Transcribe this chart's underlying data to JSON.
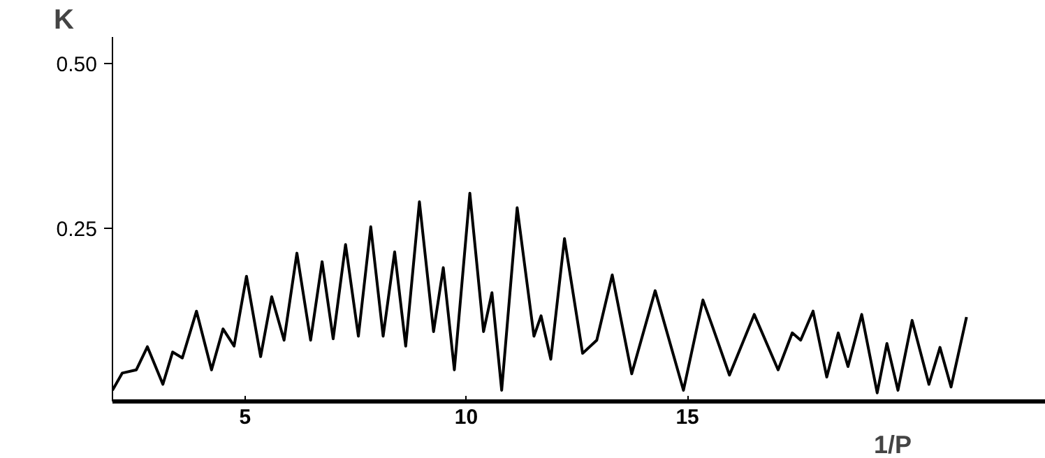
{
  "chart_data": {
    "type": "line",
    "xlabel": "1/P",
    "ylabel": "K",
    "x": [
      2.0,
      2.22,
      2.54,
      2.79,
      3.14,
      3.36,
      3.58,
      3.9,
      4.24,
      4.5,
      4.75,
      5.03,
      5.35,
      5.6,
      5.88,
      6.17,
      6.48,
      6.74,
      6.99,
      7.27,
      7.56,
      7.84,
      8.12,
      8.38,
      8.63,
      8.94,
      9.26,
      9.48,
      9.73,
      10.08,
      10.39,
      10.58,
      10.8,
      11.15,
      11.53,
      11.69,
      11.91,
      12.22,
      12.63,
      12.95,
      13.3,
      13.74,
      14.27,
      14.91,
      15.35,
      15.57,
      15.95,
      16.51,
      17.05,
      17.37,
      17.56,
      17.84,
      18.15,
      18.41,
      18.63,
      18.94,
      19.29,
      19.51,
      19.76,
      20.08,
      20.46,
      20.71,
      20.96,
      21.31
    ],
    "series": [
      {
        "color": "#000000",
        "values": [
          0.004,
          0.03,
          0.035,
          0.07,
          0.013,
          0.062,
          0.053,
          0.124,
          0.035,
          0.097,
          0.071,
          0.177,
          0.055,
          0.146,
          0.08,
          0.212,
          0.08,
          0.199,
          0.082,
          0.225,
          0.086,
          0.252,
          0.086,
          0.214,
          0.071,
          0.29,
          0.093,
          0.19,
          0.035,
          0.303,
          0.093,
          0.152,
          0.004,
          0.281,
          0.086,
          0.117,
          0.051,
          0.234,
          0.06,
          0.08,
          0.179,
          0.029,
          0.155,
          0.004,
          0.141,
          0.1,
          0.027,
          0.119,
          0.035,
          0.091,
          0.08,
          0.124,
          0.024,
          0.091,
          0.04,
          0.119,
          0.0,
          0.075,
          0.004,
          0.11,
          0.013,
          0.069,
          0.009,
          0.115
        ]
      }
    ],
    "xlim": [
      2.0,
      23.1
    ],
    "ylim": [
      -0.013,
      0.54
    ],
    "xticks": [
      5,
      10,
      15
    ],
    "yticks": [
      {
        "value": 0.25,
        "label": "0.25"
      },
      {
        "value": 0.5,
        "label": "0.50"
      }
    ],
    "grid": false,
    "line_style": "solid"
  }
}
